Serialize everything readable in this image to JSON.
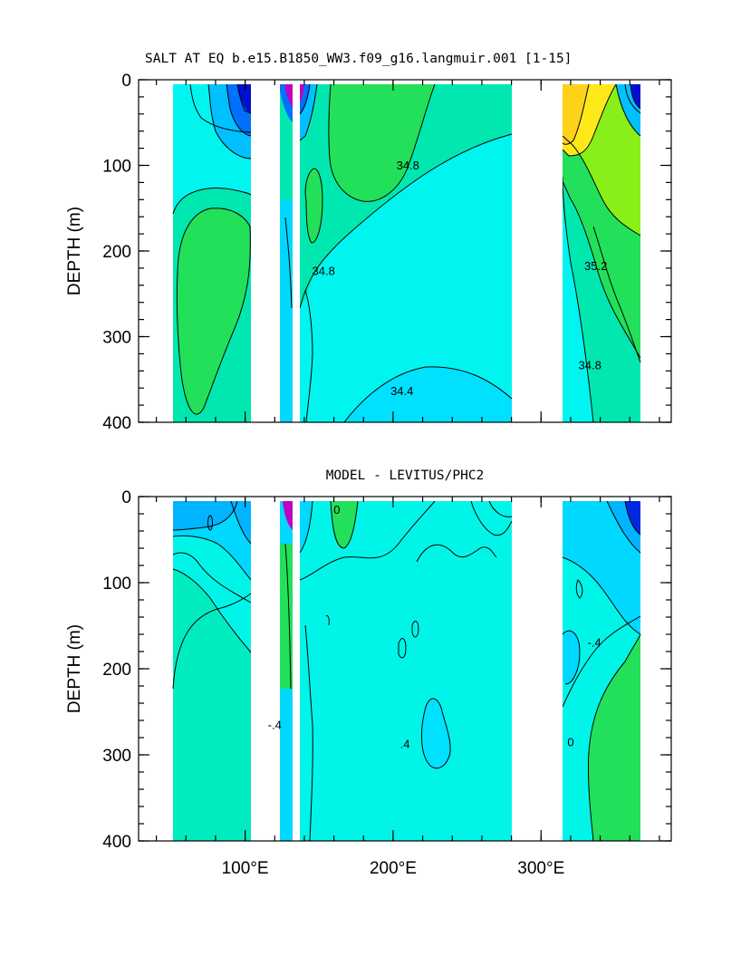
{
  "chart_data": [
    {
      "type": "heatmap",
      "title": "SALT AT EQ b.e15.B1850_WW3.f09_g16.langmuir.001 [1-15]",
      "xlabel": "",
      "ylabel": "DEPTH (m)",
      "x_ticks": [
        {
          "value": 100,
          "label": "100°E"
        },
        {
          "value": 200,
          "label": "200°E"
        },
        {
          "value": 300,
          "label": "300°E"
        }
      ],
      "xlim": [
        28,
        388
      ],
      "ylim": [
        400,
        0
      ],
      "y_ticks": [
        0,
        100,
        200,
        300,
        400
      ],
      "grid": false,
      "contour_labels": [
        {
          "text": "34.8",
          "x": 210,
          "y": 105
        },
        {
          "text": "34.8",
          "x": 153,
          "y": 228
        },
        {
          "text": "35.2",
          "x": 337,
          "y": 222
        },
        {
          "text": "34.8",
          "x": 333,
          "y": 338
        },
        {
          "text": "34.4",
          "x": 206,
          "y": 368
        }
      ],
      "colors": {
        "base": "#00f5f0",
        "mid": "#00e8b0",
        "high": "#22e05a",
        "higher": "#88f018",
        "highest": "#ffe81a",
        "peak": "#ffd21a",
        "low": "#00c0ff",
        "lower": "#0070ff",
        "lowest": "#0010d0",
        "extreme": "#c000c0"
      }
    },
    {
      "type": "heatmap",
      "title": "MODEL - LEVITUS/PHC2",
      "xlabel": "",
      "ylabel": "DEPTH (m)",
      "x_ticks": [
        {
          "value": 100,
          "label": "100°E"
        },
        {
          "value": 200,
          "label": "200°E"
        },
        {
          "value": 300,
          "label": "300°E"
        }
      ],
      "xlim": [
        28,
        388
      ],
      "ylim": [
        400,
        0
      ],
      "y_ticks": [
        0,
        100,
        200,
        300,
        400
      ],
      "grid": false,
      "contour_labels": [
        {
          "text": "0",
          "x": 162,
          "y": 20
        },
        {
          "text": "-.4",
          "x": 120,
          "y": 270
        },
        {
          "text": ".4",
          "x": 208,
          "y": 292
        },
        {
          "text": "-.4",
          "x": 336,
          "y": 174
        },
        {
          "text": "0",
          "x": 320,
          "y": 290
        }
      ],
      "colors": {
        "base": "#00f5e8",
        "mid": "#00ecc0",
        "high": "#22e05a",
        "low": "#00d8ff",
        "lower": "#00b4ff",
        "lowest": "#0028e0",
        "extreme": "#c000c0"
      }
    }
  ]
}
